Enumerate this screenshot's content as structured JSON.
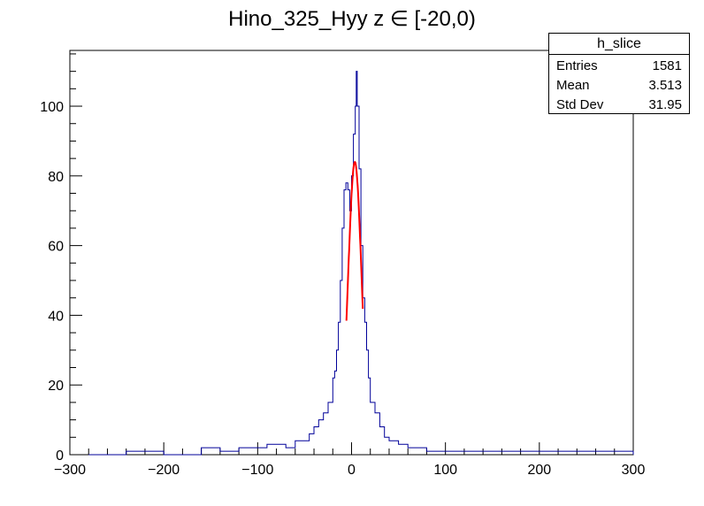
{
  "chart_data": {
    "type": "histogram",
    "title": "Hino_325_Hyy z  ∈ [-20,0)",
    "xlabel": "",
    "ylabel": "",
    "xlim": [
      -300,
      300
    ],
    "ylim": [
      0,
      116
    ],
    "x_ticks": [
      -300,
      -200,
      -100,
      0,
      100,
      200,
      300
    ],
    "y_ticks": [
      0,
      20,
      40,
      60,
      80,
      100
    ],
    "grid": false,
    "series": [
      {
        "kind": "histogram-profile",
        "color": "#000099",
        "x": [
          -280,
          -240,
          -200,
          -160,
          -140,
          -120,
          -100,
          -90,
          -80,
          -70,
          -60,
          -50,
          -45,
          -40,
          -35,
          -30,
          -25,
          -20,
          -18,
          -16,
          -14,
          -12,
          -10,
          -8,
          -6,
          -4,
          -2,
          0,
          2,
          4,
          5,
          6,
          8,
          10,
          12,
          14,
          16,
          18,
          20,
          25,
          30,
          35,
          40,
          50,
          60,
          70,
          80,
          100,
          120,
          160,
          200,
          240,
          280,
          300
        ],
        "y": [
          0,
          1,
          0,
          2,
          1,
          2,
          2,
          3,
          3,
          2,
          4,
          4,
          6,
          8,
          10,
          12,
          15,
          22,
          24,
          30,
          38,
          50,
          65,
          76,
          78,
          76,
          70,
          80,
          92,
          100,
          110,
          100,
          82,
          60,
          45,
          38,
          30,
          22,
          15,
          12,
          8,
          5,
          4,
          3,
          2,
          2,
          1,
          1,
          1,
          1,
          1,
          1,
          1,
          0
        ]
      },
      {
        "kind": "gaussian-fit",
        "color": "#ff0000",
        "mean": 3.5,
        "sigma": 7.2,
        "amplitude": 84,
        "range": [
          -5.5,
          12
        ]
      }
    ]
  },
  "stats": {
    "title": "h_slice",
    "rows": [
      {
        "label": "Entries",
        "value": "1581"
      },
      {
        "label": "Mean",
        "value": "3.513"
      },
      {
        "label": "Std Dev",
        "value": "31.95"
      }
    ]
  },
  "colors": {
    "histogram": "#000099",
    "fit": "#ff0000",
    "axes": "#000000"
  }
}
